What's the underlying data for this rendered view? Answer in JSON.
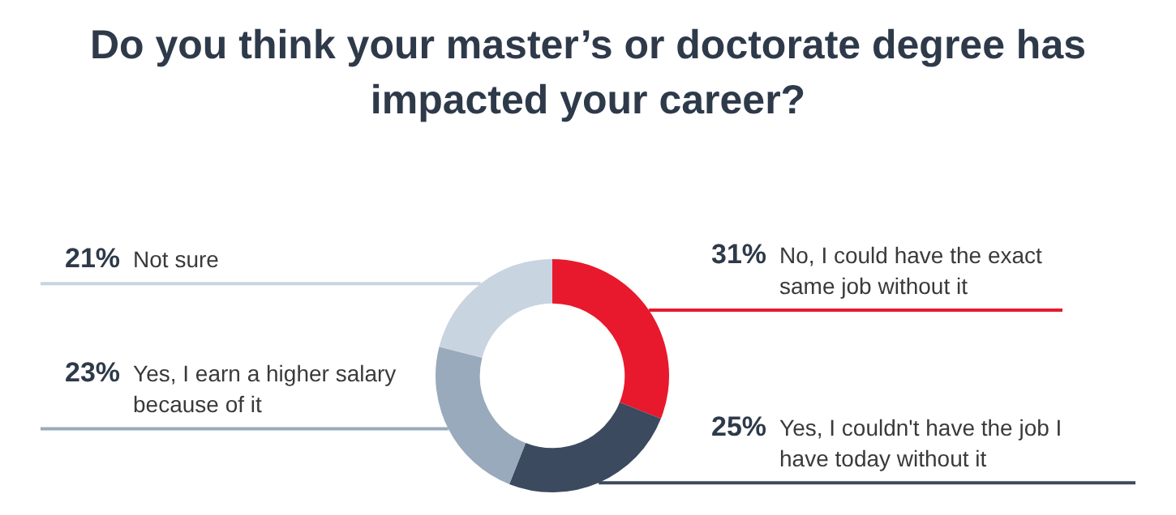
{
  "chart_data": {
    "type": "donut",
    "title": "Do you think your master’s or doctorate degree has impacted your career?",
    "categories": [
      "No, I could have the exact same job without it",
      "Yes, I couldn't have the job I have today without it",
      "Yes, I earn a higher salary because of it",
      "Not sure"
    ],
    "values": [
      31,
      25,
      23,
      21
    ],
    "colors": [
      "#e8192c",
      "#3b4a5e",
      "#98aabb",
      "#c8d4e0"
    ],
    "value_labels": [
      "31%",
      "25%",
      "23%",
      "21%"
    ],
    "legend": false
  }
}
